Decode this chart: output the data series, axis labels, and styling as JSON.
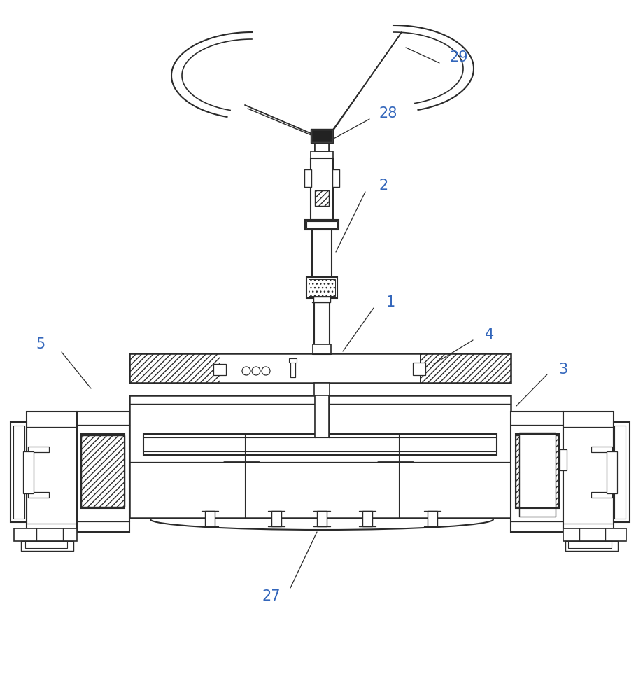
{
  "bg_color": "#ffffff",
  "line_color": "#2a2a2a",
  "label_color": "#3366bb",
  "figsize": [
    9.19,
    10.0
  ],
  "dpi": 100
}
